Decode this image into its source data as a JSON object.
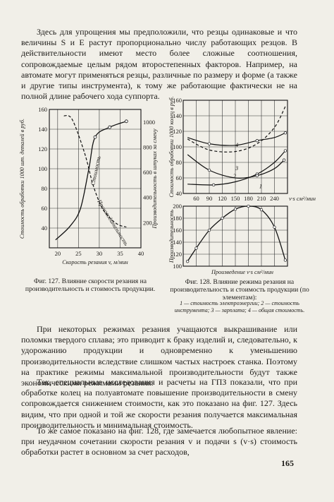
{
  "text": {
    "para_top": "Здесь для упрощения мы предположили, что резцы одинаковые и что величины S и E растут пропорционально числу работающих резцов. В действительности имеют место более сложные соотношения, сопровождаемые целым рядом второстепенных факторов. Например, на автомате могут применяться резцы, различные по размеру и форме (а также и другие типы инструмента), к тому же работающие фактически не на полной длине рабочего хода суппорта.",
    "para_2": "При некоторых режимах резания учащаются выкрашивание или поломки твердого сплава; это приводит к браку изделий и, следовательно, к удорожанию продукции и одновременно к уменьшению производительности вследствие слишком частых настроек станка. Поэтому на практике режимы максимальной производительности будут также экономическими режимами резания.",
    "para_3": "Так, специальные исследования и расчеты на ГПЗ показали, что при обработке колец на полуавтомате повышение производительности в смену сопровождается снижением стоимости, как это показано на фиг. 127. Здесь видим, что при одной и той же скорости резания получается максимальная производительность и минимальная стоимость.",
    "para_4": "То же самое показано на фиг. 128, где замечается любопытное явление: при неудачном сочетании скорости резания v и подачи s (v·s) стоимость обработки растет в основном за счет расходов,",
    "page_number": "165"
  },
  "fig127": {
    "caption": "Фиг. 127. Влияние скорости резания на производительность и стоимость продукции.",
    "ylabel_left": "Стоимость обработки 1000 шт. деталей в руб.",
    "ylabel_right": "Производительность в штуках за смену",
    "xlabel": "Скорость резания v, м/мин",
    "left_ticks": [
      "160",
      "140",
      "120",
      "100",
      "80",
      "60",
      "40"
    ],
    "right_ticks": [
      "1000",
      "800",
      "600",
      "400",
      "200"
    ],
    "x_ticks": [
      "20",
      "25",
      "30",
      "35",
      "40"
    ],
    "curve_label_cost": "Стоимость",
    "curve_label_prod": "Производительность"
  },
  "fig128": {
    "caption": "Фиг. 128. Влияние режима резания на производительность и стоимость продукции (по элементам):",
    "legend": "1 — стоимость электроэнергии; 2 — стоимость инструмента; 3 — зарплата; 4 — общая стоимость.",
    "top_ylabel": "Стоимость обработки 1000 колец в руб.",
    "top_ticks": [
      "160",
      "140",
      "120",
      "100",
      "80",
      "60",
      "40"
    ],
    "x_ticks": [
      "60",
      "90",
      "120",
      "150",
      "180",
      "210",
      "240"
    ],
    "x_unit": "v·s см²/мин",
    "bottom_ylabel": "Производительность",
    "bottom_ticks": [
      "200",
      "180",
      "160",
      "140",
      "120",
      "100"
    ],
    "bottom_xlabel": "Произведение v·s см²/мин",
    "curve_labels": [
      "4",
      "3",
      "2",
      "1"
    ]
  },
  "chart_data": [
    {
      "type": "line",
      "xlabel": "Скорость резания v, м/мин",
      "ylabel": "Стоимость обработки 1000 шт. деталей в руб.",
      "xlim": [
        18,
        40
      ],
      "ylim": [
        20,
        160
      ],
      "series": [
        {
          "name": "Стоимость",
          "x": [
            19.5,
            23,
            25.5,
            27.5,
            29,
            32.5,
            36.5
          ],
          "y": [
            28,
            42,
            60,
            100,
            132,
            142,
            148
          ]
        },
        {
          "name": "Производительность",
          "x": [
            21.5,
            23.5,
            26.5,
            28.5,
            30.5,
            32.5,
            34.5,
            36.5
          ],
          "y": [
            1050,
            1020,
            750,
            500,
            330,
            240,
            185,
            165
          ]
        }
      ]
    },
    {
      "type": "line",
      "xlabel": "v·s см²/мин",
      "ylabel": "Стоимость обработки 1000 колец в руб.",
      "xlim": [
        30,
        270
      ],
      "ylim": [
        40,
        160
      ],
      "series": [
        {
          "name": "1",
          "x": [
            40,
            90,
            150,
            200,
            240,
            265
          ],
          "y": [
            112,
            104,
            102,
            108,
            112,
            118
          ]
        },
        {
          "name": "2",
          "x": [
            40,
            100,
            150,
            200,
            240,
            265
          ],
          "y": [
            52,
            51,
            55,
            65,
            80,
            95
          ]
        },
        {
          "name": "3",
          "x": [
            40,
            90,
            150,
            200,
            240,
            262
          ],
          "y": [
            90,
            70,
            60,
            63,
            72,
            83
          ]
        },
        {
          "name": "4",
          "x": [
            40,
            90,
            150,
            200,
            240,
            265
          ],
          "y": [
            110,
            96,
            94,
            104,
            125,
            152
          ]
        }
      ]
    },
    {
      "type": "line",
      "xlabel": "Произведение v·s см²/мин",
      "ylabel": "Производительность",
      "xlim": [
        30,
        270
      ],
      "ylim": [
        100,
        200
      ],
      "series": [
        {
          "x": [
            40,
            60,
            90,
            120,
            150,
            180,
            210,
            240,
            265
          ],
          "y": [
            108,
            130,
            160,
            180,
            195,
            200,
            194,
            165,
            110
          ]
        }
      ]
    }
  ]
}
